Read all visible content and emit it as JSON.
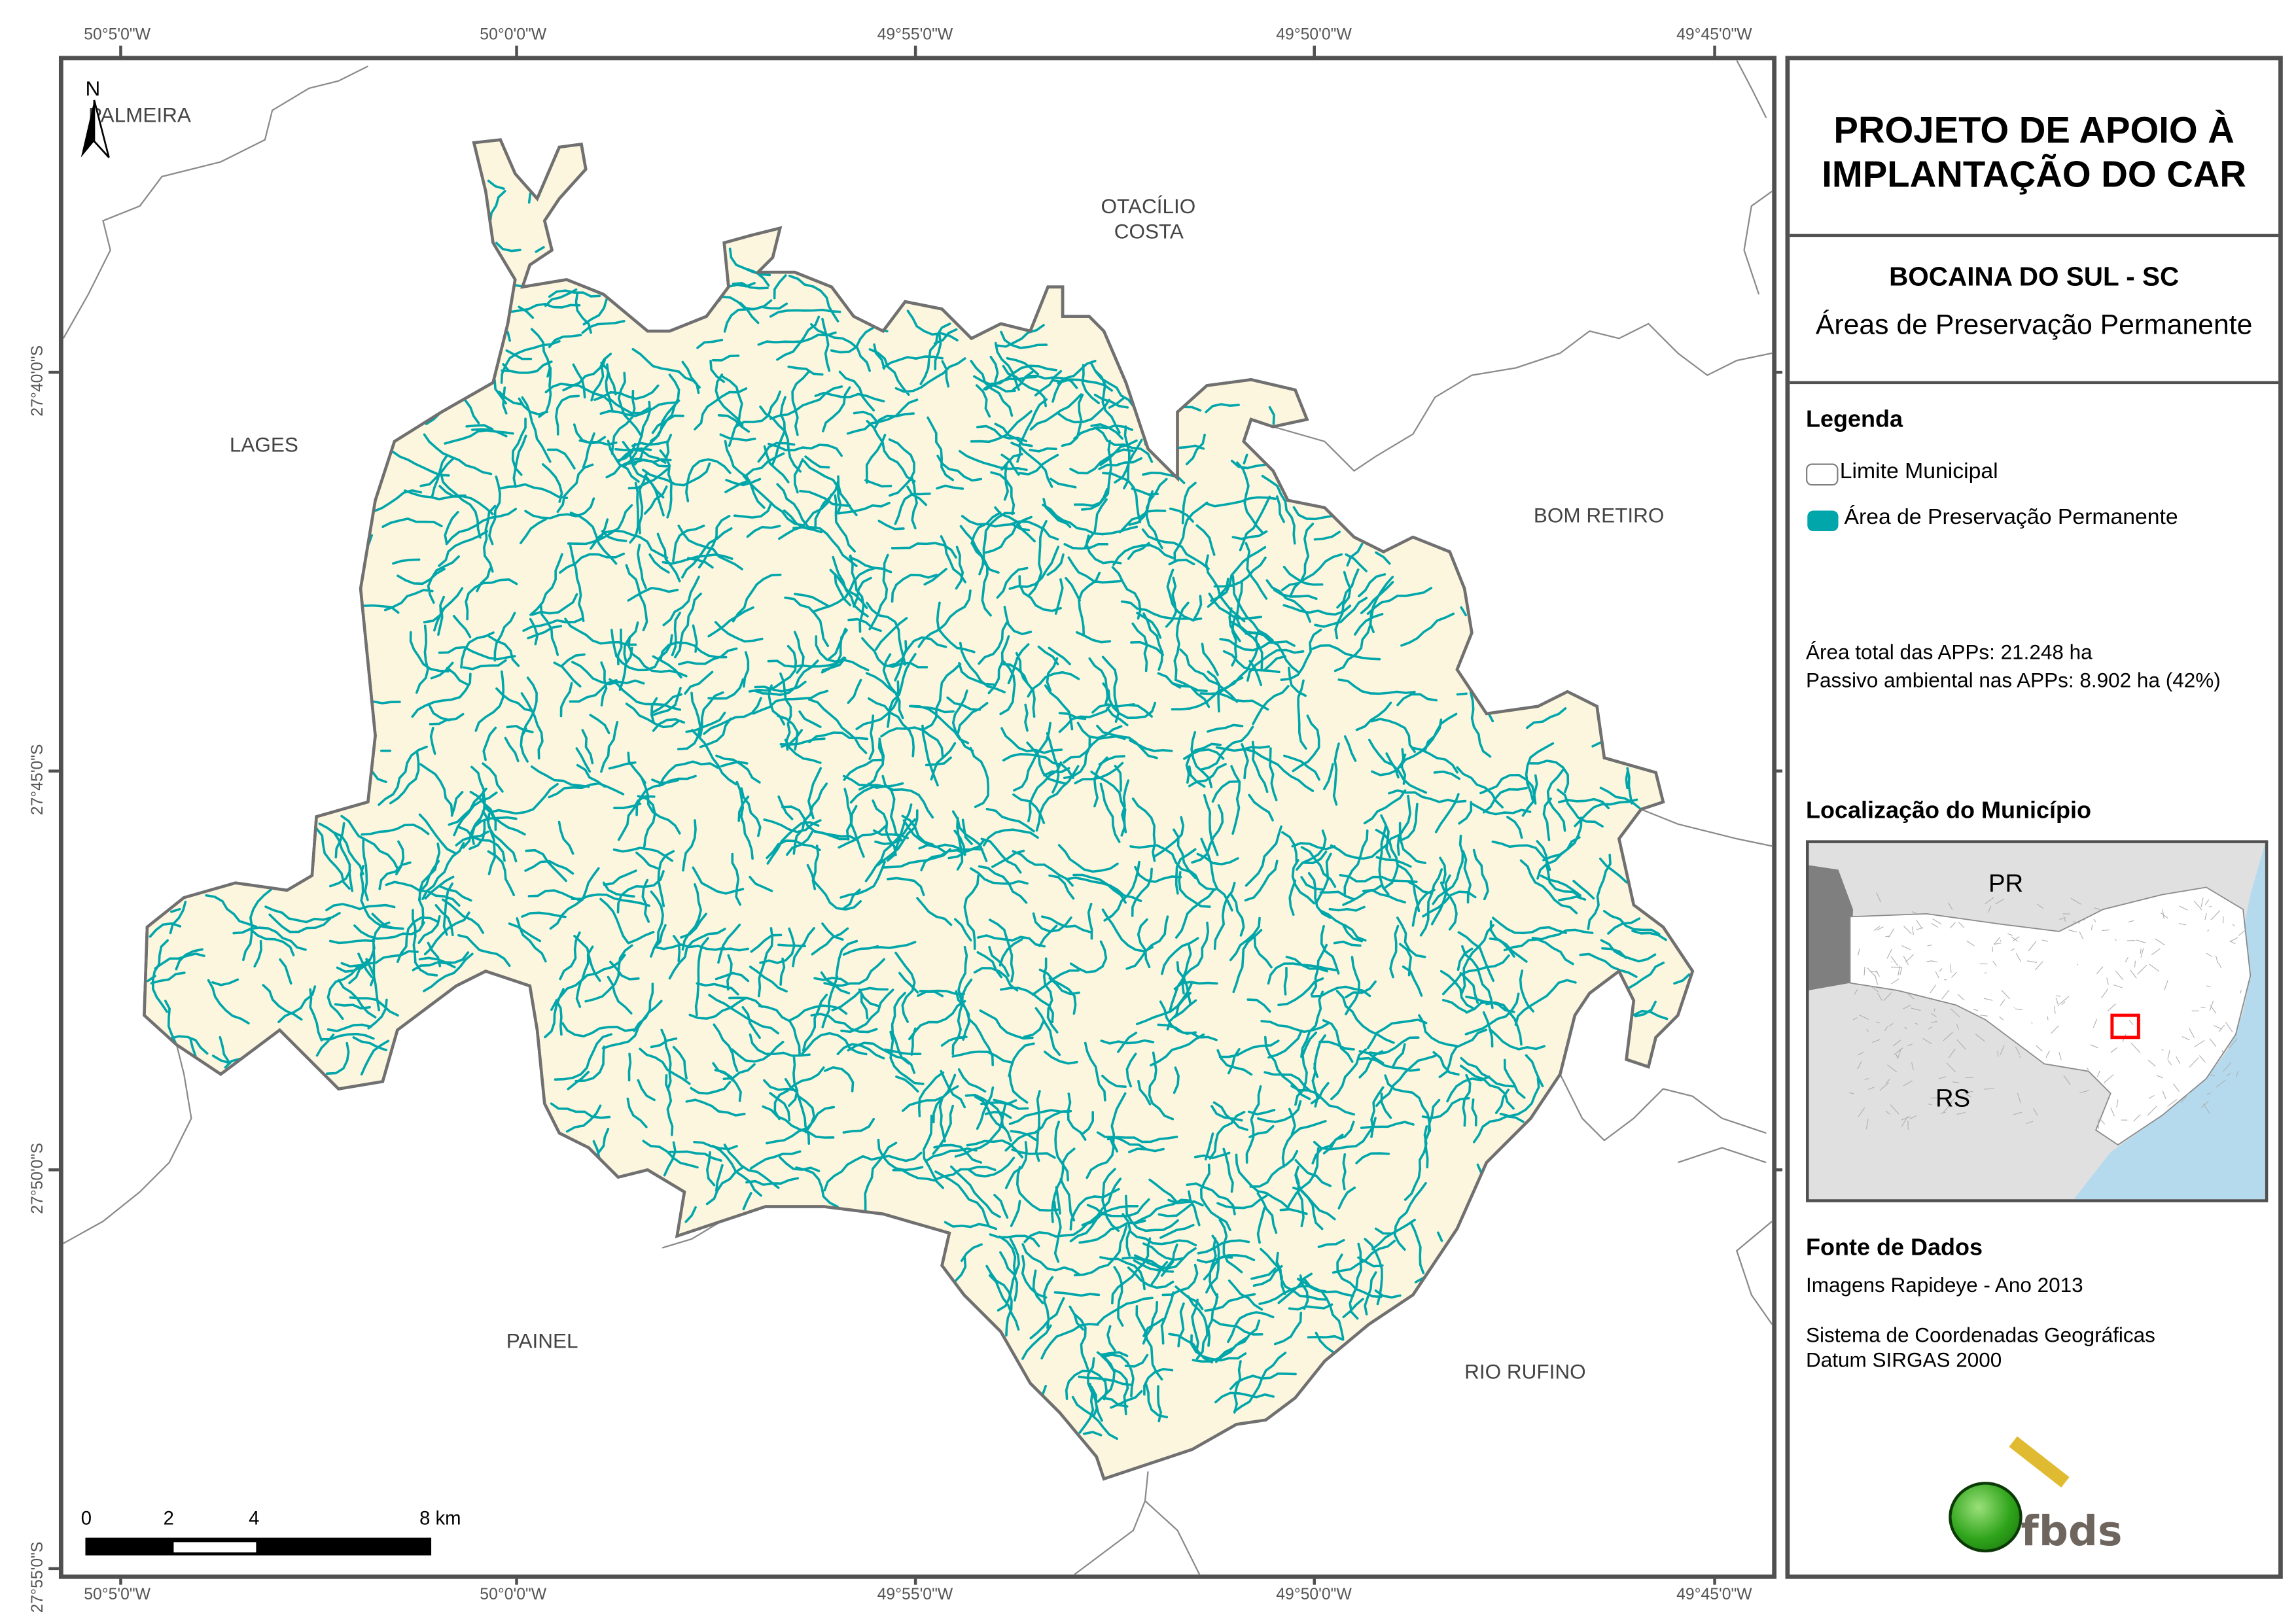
{
  "header": {
    "project_title_line1": "PROJETO DE APOIO À",
    "project_title_line2": "IMPLANTAÇÃO DO CAR",
    "municipality": "BOCAINA DO SUL - SC",
    "subtitle": "Áreas de Preservação Permanente"
  },
  "legend": {
    "title": "Legenda",
    "items": [
      {
        "label": "Limite Municipal",
        "swatch": "outline",
        "color": "#808080"
      },
      {
        "label": "Área de Preservação Permanente",
        "swatch": "fill",
        "color": "#00a6a9"
      }
    ]
  },
  "stats": {
    "total_area": "Área total das APPs: 21.248 ha",
    "liability": "Passivo ambiental nas APPs: 8.902 ha (42%)"
  },
  "location": {
    "title": "Localização do Município",
    "labels": [
      "PR",
      "RS"
    ],
    "highlight_color": "#ff0000",
    "ocean_color": "#b5daee"
  },
  "sources": {
    "title": "Fonte de Dados",
    "line1": "Imagens Rapideye - Ano 2013",
    "line2": "Sistema de Coordenadas Geográficas",
    "line3": "Datum SIRGAS 2000"
  },
  "logo": {
    "text": "fbds"
  },
  "map": {
    "north_label": "N",
    "neighbors": [
      "PALMEIRA",
      "OTACÍLIO",
      "COSTA",
      "LAGES",
      "BOM RETIRO",
      "PAINEL",
      "RIO RUFINO"
    ],
    "lon_ticks": [
      "50°5'0\"W",
      "50°0'0\"W",
      "49°55'0\"W",
      "49°50'0\"W",
      "49°45'0\"W"
    ],
    "lat_ticks": [
      "27°40'0\"S",
      "27°45'0\"S",
      "27°50'0\"S",
      "27°55'0\"S"
    ],
    "scale_labels": [
      "0",
      "2",
      "4",
      "8 km"
    ],
    "fill_color": "#fdf6df",
    "app_color": "#00a6a9"
  }
}
